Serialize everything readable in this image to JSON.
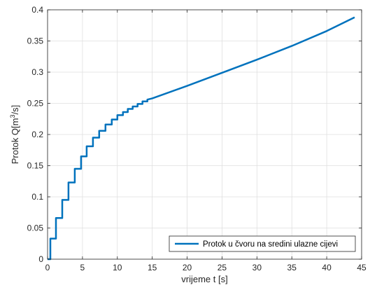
{
  "chart_data": {
    "type": "line",
    "title": "",
    "xlabel": "vrijeme t [s]",
    "ylabel": {
      "prefix": "Protok Q[m",
      "superscript": "3",
      "suffix": "/s]"
    },
    "xlim": [
      0,
      45
    ],
    "ylim": [
      0,
      0.4
    ],
    "xticks": [
      0,
      5,
      10,
      15,
      20,
      25,
      30,
      35,
      40,
      45
    ],
    "yticks": [
      0,
      0.05,
      0.1,
      0.15,
      0.2,
      0.25,
      0.3,
      0.35,
      0.4
    ],
    "xtick_labels": [
      "0",
      "5",
      "10",
      "15",
      "20",
      "25",
      "30",
      "35",
      "40",
      "45"
    ],
    "ytick_labels": [
      "0",
      "0.05",
      "0.1",
      "0.15",
      "0.2",
      "0.25",
      "0.3",
      "0.35",
      "0.4"
    ],
    "grid": true,
    "legend_position": "bottom-right",
    "series": [
      {
        "name": "Protok u čvoru na sredini ulazne cijevi",
        "color": "#0072BD",
        "x": [
          0,
          0.4,
          0.4,
          1.2,
          1.2,
          2.1,
          2.1,
          3.0,
          3.0,
          3.9,
          3.9,
          4.8,
          4.8,
          5.6,
          5.6,
          6.5,
          6.5,
          7.4,
          7.4,
          8.3,
          8.3,
          9.2,
          9.2,
          10.0,
          10.0,
          10.8,
          10.8,
          11.5,
          11.5,
          12.2,
          12.2,
          12.9,
          12.9,
          13.6,
          13.6,
          14.3,
          14.3,
          15.0,
          20,
          25,
          30,
          35,
          40,
          44
        ],
        "y": [
          0,
          0,
          0.033,
          0.033,
          0.066,
          0.066,
          0.095,
          0.095,
          0.123,
          0.123,
          0.145,
          0.145,
          0.165,
          0.165,
          0.181,
          0.181,
          0.195,
          0.195,
          0.206,
          0.206,
          0.216,
          0.216,
          0.224,
          0.224,
          0.231,
          0.231,
          0.236,
          0.236,
          0.241,
          0.241,
          0.245,
          0.245,
          0.249,
          0.249,
          0.253,
          0.253,
          0.256,
          0.258,
          0.278,
          0.299,
          0.32,
          0.342,
          0.366,
          0.388
        ]
      }
    ]
  }
}
